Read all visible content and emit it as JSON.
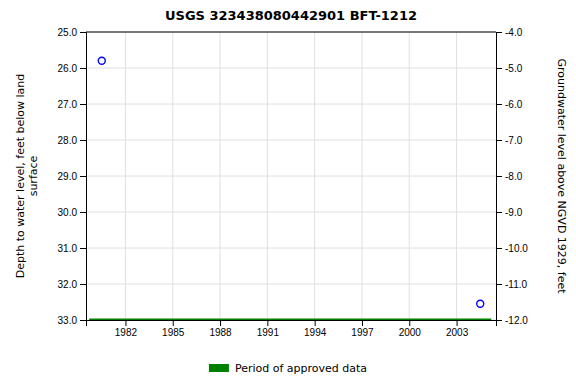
{
  "chart_data": {
    "type": "scatter",
    "title": "USGS 323438080442901 BFT-1212",
    "ylabel": "Depth to water level, feet below land\nsurface",
    "y2label": "Groundwater level above NGVD 1929, feet",
    "xlim": [
      1979.5,
      2005.5
    ],
    "xticks": [
      1982,
      1985,
      1988,
      1991,
      1994,
      1997,
      2000,
      2003
    ],
    "ylim": [
      33.0,
      25.0
    ],
    "yticks": [
      {
        "value": 25.0,
        "label": "25.0"
      },
      {
        "value": 26.0,
        "label": "26.0"
      },
      {
        "value": 27.0,
        "label": "27.0"
      },
      {
        "value": 28.0,
        "label": "28.0"
      },
      {
        "value": 29.0,
        "label": "29.0"
      },
      {
        "value": 30.0,
        "label": "30.0"
      },
      {
        "value": 31.0,
        "label": "31.0"
      },
      {
        "value": 32.0,
        "label": "32.0"
      },
      {
        "value": 33.0,
        "label": "33.0"
      }
    ],
    "y2lim": [
      -12.0,
      -4.0
    ],
    "y2ticks": [
      {
        "value": -4.0,
        "label": "-4.0"
      },
      {
        "value": -5.0,
        "label": "-5.0"
      },
      {
        "value": -6.0,
        "label": "-6.0"
      },
      {
        "value": -7.0,
        "label": "-7.0"
      },
      {
        "value": -8.0,
        "label": "-8.0"
      },
      {
        "value": -9.0,
        "label": "-9.0"
      },
      {
        "value": -10.0,
        "label": "-10.0"
      },
      {
        "value": -11.0,
        "label": "-11.0"
      },
      {
        "value": -12.0,
        "label": "-12.0"
      }
    ],
    "grid": true,
    "legend": "bottom",
    "series": [
      {
        "type": "scatter",
        "color": "#0000ff",
        "marker": "circle",
        "x": [
          1980.5,
          2004.5
        ],
        "values": [
          25.8,
          32.55
        ]
      },
      {
        "name": "Period of approved data",
        "type": "line",
        "color": "#008000",
        "x": [
          1979.7,
          2005.2
        ],
        "values": [
          33.0,
          33.0
        ]
      }
    ]
  }
}
